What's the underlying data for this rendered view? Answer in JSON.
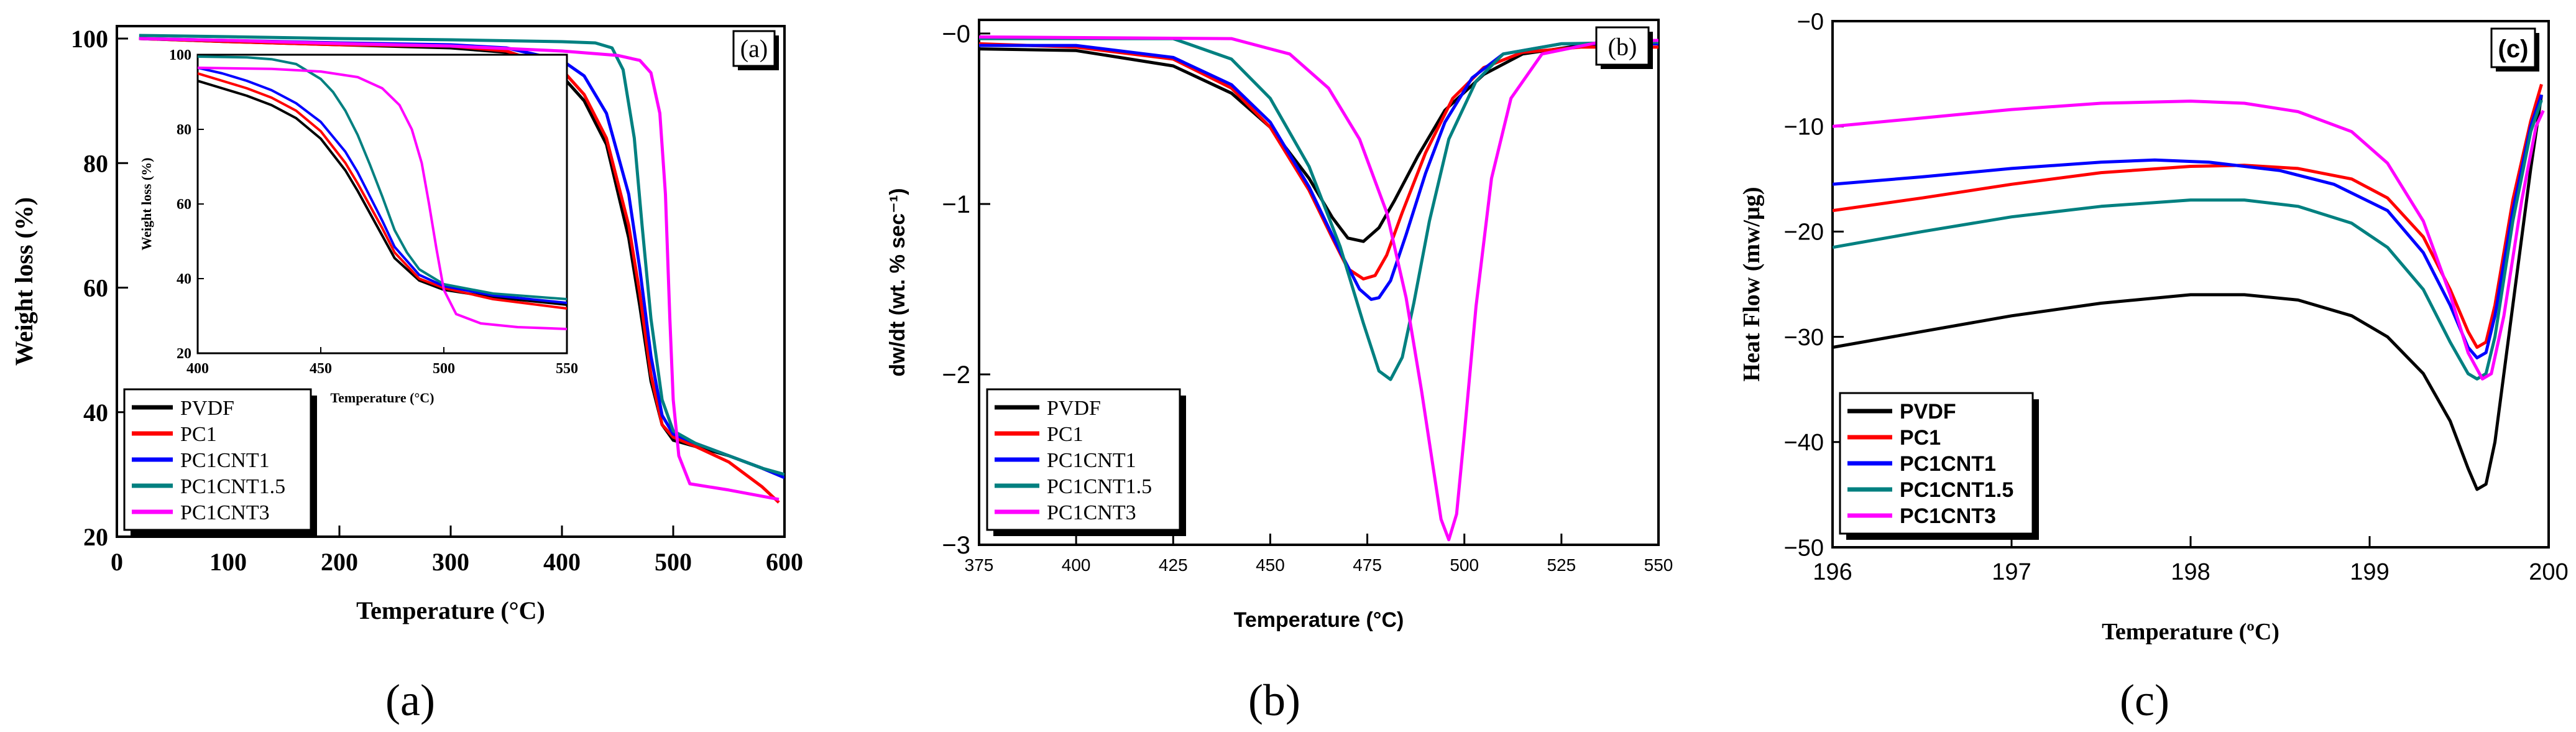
{
  "colors": {
    "PVDF": "#000000",
    "PC1": "#ff0000",
    "PC1CNT1": "#0000ff",
    "PC1CNT1.5": "#008080",
    "PC1CNT3": "#ff00ff"
  },
  "captions": [
    "(a)",
    "(b)",
    "(c)"
  ],
  "chart_data": [
    {
      "panel": "a",
      "type": "line",
      "panel_label": "(a)",
      "xlabel": "Temperature (°C)",
      "ylabel": "Weight loss (%)",
      "xlim": [
        0,
        600
      ],
      "ylim": [
        20,
        102
      ],
      "xticks": [
        0,
        100,
        200,
        300,
        400,
        500,
        600
      ],
      "yticks": [
        20,
        40,
        60,
        80,
        100
      ],
      "legend": [
        "PVDF",
        "PC1",
        "PC1CNT1",
        "PC1CNT1.5",
        "PC1CNT3"
      ],
      "series": [
        {
          "name": "PVDF",
          "x": [
            20,
            100,
            200,
            300,
            350,
            400,
            420,
            440,
            460,
            470,
            480,
            490,
            500,
            520,
            550,
            580,
            600
          ],
          "y": [
            100,
            99.5,
            99,
            98.5,
            97.8,
            94,
            90,
            83,
            68,
            57,
            45,
            38,
            35.5,
            34.5,
            33,
            31,
            29.5
          ]
        },
        {
          "name": "PC1",
          "x": [
            20,
            100,
            200,
            300,
            350,
            400,
            420,
            440,
            460,
            470,
            480,
            490,
            500,
            520,
            550,
            580,
            595
          ],
          "y": [
            100,
            99.5,
            99,
            98.8,
            98,
            95,
            91,
            84,
            70,
            59,
            46,
            38,
            36,
            34.5,
            32,
            28,
            25.5
          ]
        },
        {
          "name": "PC1CNT1",
          "x": [
            20,
            100,
            200,
            300,
            350,
            400,
            420,
            440,
            460,
            470,
            480,
            490,
            500,
            520,
            550,
            580,
            600
          ],
          "y": [
            100,
            99.7,
            99.3,
            99,
            98.5,
            96.5,
            94,
            88,
            75,
            63,
            49,
            39.5,
            36.5,
            35,
            33,
            31,
            29.5
          ]
        },
        {
          "name": "PC1CNT1.5",
          "x": [
            20,
            100,
            200,
            300,
            400,
            430,
            445,
            455,
            465,
            472,
            480,
            490,
            500,
            520,
            550,
            580,
            600
          ],
          "y": [
            100.5,
            100.3,
            100,
            99.8,
            99.5,
            99.3,
            98.5,
            95,
            84,
            70,
            55,
            42,
            37,
            35,
            33,
            31,
            30
          ]
        },
        {
          "name": "PC1CNT3",
          "x": [
            20,
            100,
            200,
            300,
            400,
            450,
            470,
            480,
            488,
            493,
            497,
            500,
            505,
            515,
            550,
            580,
            595
          ],
          "y": [
            100,
            99.7,
            99.2,
            98.8,
            98,
            97.3,
            96.5,
            94.5,
            88,
            75,
            55,
            42,
            33,
            28.5,
            27.5,
            26.5,
            26
          ]
        }
      ],
      "inset": {
        "xlabel": "Temperature (°C)",
        "ylabel": "Weight loss (%)",
        "xlim": [
          400,
          550
        ],
        "ylim": [
          20,
          100
        ],
        "xticks": [
          400,
          450,
          500,
          550
        ],
        "yticks": [
          20,
          40,
          60,
          80,
          100
        ],
        "series": [
          {
            "name": "PVDF",
            "x": [
              400,
              410,
              420,
              430,
              440,
              450,
              460,
              465,
              470,
              475,
              480,
              490,
              500,
              520,
              550
            ],
            "y": [
              93,
              91,
              89,
              86.5,
              83,
              77.5,
              69,
              63.5,
              57.5,
              51.5,
              45.5,
              39.5,
              37,
              35,
              33
            ]
          },
          {
            "name": "PC1",
            "x": [
              400,
              410,
              420,
              430,
              440,
              450,
              460,
              465,
              470,
              475,
              480,
              490,
              500,
              520,
              550
            ],
            "y": [
              95,
              93,
              91,
              88.5,
              85,
              79.5,
              71,
              65.5,
              59.5,
              53.5,
              47,
              40,
              37.5,
              34.5,
              32
            ]
          },
          {
            "name": "PC1CNT1",
            "x": [
              400,
              410,
              420,
              430,
              440,
              450,
              460,
              465,
              470,
              475,
              480,
              490,
              500,
              520,
              550
            ],
            "y": [
              96.5,
              95,
              93,
              90.5,
              87,
              82,
              74,
              68.5,
              62,
              55.5,
              48.5,
              41,
              38,
              35.5,
              33.5
            ]
          },
          {
            "name": "PC1CNT1.5",
            "x": [
              400,
              420,
              430,
              440,
              450,
              455,
              460,
              465,
              470,
              475,
              480,
              485,
              490,
              500,
              520,
              550
            ],
            "y": [
              99.5,
              99.3,
              98.8,
              97.5,
              93.5,
              90,
              85,
              78.5,
              70.5,
              62,
              53,
              47,
              42.5,
              38.5,
              36,
              34.5
            ]
          },
          {
            "name": "PC1CNT3",
            "x": [
              400,
              430,
              450,
              465,
              475,
              482,
              487,
              491,
              494,
              497,
              500,
              505,
              515,
              530,
              550
            ],
            "y": [
              96.5,
              96.2,
              95.5,
              94,
              91,
              86.5,
              80,
              71,
              60,
              48,
              37,
              30.5,
              28,
              27,
              26.5
            ]
          }
        ]
      }
    },
    {
      "panel": "b",
      "type": "line",
      "panel_label": "(b)",
      "xlabel": "Temperature (°C)",
      "ylabel": "dw/dt (wt. % sec⁻¹)",
      "xlim": [
        375,
        550
      ],
      "ylim": [
        -3,
        0.08
      ],
      "xticks": [
        375,
        400,
        425,
        450,
        475,
        500,
        525,
        550
      ],
      "yticks": [
        -3,
        -2,
        -1,
        0
      ],
      "ytick_labels": [
        "−3",
        "−2",
        "−1",
        "−0"
      ],
      "legend": [
        "PVDF",
        "PC1",
        "PC1CNT1",
        "PC1CNT1.5",
        "PC1CNT3"
      ],
      "series": [
        {
          "name": "PVDF",
          "x": [
            375,
            400,
            425,
            440,
            450,
            460,
            466,
            470,
            474,
            478,
            482,
            488,
            495,
            505,
            515,
            530,
            550
          ],
          "y": [
            -0.09,
            -0.1,
            -0.19,
            -0.35,
            -0.55,
            -0.85,
            -1.08,
            -1.2,
            -1.22,
            -1.14,
            -0.98,
            -0.72,
            -0.45,
            -0.24,
            -0.12,
            -0.07,
            -0.05
          ]
        },
        {
          "name": "PC1",
          "x": [
            375,
            400,
            425,
            440,
            450,
            460,
            466,
            470,
            474,
            477,
            480,
            484,
            490,
            497,
            505,
            515,
            530,
            550
          ],
          "y": [
            -0.06,
            -0.08,
            -0.15,
            -0.32,
            -0.55,
            -0.92,
            -1.2,
            -1.38,
            -1.44,
            -1.42,
            -1.3,
            -1.05,
            -0.7,
            -0.38,
            -0.2,
            -0.11,
            -0.08,
            -0.08
          ]
        },
        {
          "name": "PC1CNT1",
          "x": [
            375,
            400,
            425,
            440,
            450,
            460,
            468,
            473,
            476,
            478,
            481,
            485,
            490,
            495,
            502,
            510,
            525,
            550
          ],
          "y": [
            -0.07,
            -0.07,
            -0.14,
            -0.3,
            -0.52,
            -0.9,
            -1.28,
            -1.5,
            -1.56,
            -1.55,
            -1.45,
            -1.18,
            -0.82,
            -0.52,
            -0.26,
            -0.12,
            -0.06,
            -0.06
          ]
        },
        {
          "name": "PC1CNT1.5",
          "x": [
            375,
            425,
            440,
            450,
            460,
            468,
            474,
            478,
            481,
            484,
            487,
            491,
            496,
            503,
            510,
            525,
            550
          ],
          "y": [
            -0.03,
            -0.03,
            -0.15,
            -0.38,
            -0.78,
            -1.25,
            -1.7,
            -1.98,
            -2.03,
            -1.9,
            -1.58,
            -1.1,
            -0.62,
            -0.28,
            -0.12,
            -0.06,
            -0.05
          ]
        },
        {
          "name": "PC1CNT3",
          "x": [
            375,
            440,
            455,
            465,
            473,
            480,
            485,
            489,
            492,
            494,
            496,
            498,
            500,
            503,
            507,
            512,
            520,
            535,
            550
          ],
          "y": [
            -0.02,
            -0.03,
            -0.12,
            -0.32,
            -0.62,
            -1.05,
            -1.55,
            -2.1,
            -2.55,
            -2.85,
            -2.97,
            -2.82,
            -2.35,
            -1.6,
            -0.85,
            -0.38,
            -0.12,
            -0.05,
            -0.04
          ]
        }
      ]
    },
    {
      "panel": "c",
      "type": "line",
      "panel_label": "(c)",
      "xlabel": "Temperature (ºC)",
      "ylabel": "Heat Flow (mw/µg)",
      "xlim": [
        196,
        200
      ],
      "ylim": [
        -50,
        0
      ],
      "xticks": [
        196,
        197,
        198,
        199,
        200
      ],
      "yticks": [
        -50,
        -40,
        -30,
        -20,
        -10,
        0
      ],
      "ytick_labels": [
        "−50",
        "−40",
        "−30",
        "−20",
        "−10",
        "−0"
      ],
      "legend": [
        "PVDF",
        "PC1",
        "PC1CNT1",
        "PC1CNT1.5",
        "PC1CNT3"
      ],
      "series": [
        {
          "name": "PVDF",
          "x": [
            196,
            196.5,
            197,
            197.5,
            198,
            198.3,
            198.6,
            198.9,
            199.1,
            199.3,
            199.45,
            199.55,
            199.6,
            199.65,
            199.7,
            199.8,
            199.9,
            199.96
          ],
          "y": [
            -31,
            -29.5,
            -28,
            -26.8,
            -26,
            -26,
            -26.5,
            -28,
            -30,
            -33.5,
            -38,
            -42.5,
            -44.5,
            -44,
            -40,
            -27,
            -14,
            -7
          ]
        },
        {
          "name": "PC1",
          "x": [
            196,
            196.5,
            197,
            197.5,
            198,
            198.3,
            198.6,
            198.9,
            199.1,
            199.3,
            199.45,
            199.55,
            199.6,
            199.65,
            199.7,
            199.8,
            199.9,
            199.96
          ],
          "y": [
            -18,
            -16.8,
            -15.5,
            -14.4,
            -13.8,
            -13.7,
            -14,
            -15,
            -16.8,
            -20.5,
            -25.5,
            -29.5,
            -31,
            -30.5,
            -27,
            -17,
            -9.5,
            -6
          ]
        },
        {
          "name": "PC1CNT1",
          "x": [
            196,
            196.5,
            197,
            197.5,
            197.8,
            198.1,
            198.5,
            198.8,
            199.1,
            199.3,
            199.45,
            199.55,
            199.6,
            199.65,
            199.7,
            199.8,
            199.9,
            199.96
          ],
          "y": [
            -15.5,
            -14.8,
            -14,
            -13.4,
            -13.2,
            -13.4,
            -14.2,
            -15.5,
            -18,
            -22,
            -27,
            -31,
            -32,
            -31.5,
            -28,
            -18,
            -10,
            -7
          ]
        },
        {
          "name": "PC1CNT1.5",
          "x": [
            196,
            196.5,
            197,
            197.5,
            198,
            198.3,
            198.6,
            198.9,
            199.1,
            199.3,
            199.45,
            199.55,
            199.6,
            199.65,
            199.7,
            199.8,
            199.9,
            199.96
          ],
          "y": [
            -21.5,
            -20,
            -18.6,
            -17.6,
            -17,
            -17,
            -17.6,
            -19.2,
            -21.5,
            -25.5,
            -30.5,
            -33.5,
            -34,
            -33.5,
            -30,
            -19,
            -10.5,
            -7.5
          ]
        },
        {
          "name": "PC1CNT3",
          "x": [
            196,
            196.5,
            197,
            197.5,
            198,
            198.3,
            198.6,
            198.9,
            199.1,
            199.3,
            199.45,
            199.55,
            199.63,
            199.68,
            199.75,
            199.85,
            199.93,
            199.97
          ],
          "y": [
            -10,
            -9.2,
            -8.4,
            -7.8,
            -7.6,
            -7.8,
            -8.6,
            -10.5,
            -13.5,
            -19,
            -26,
            -31.5,
            -34,
            -33.5,
            -28,
            -17,
            -10,
            -8.5
          ]
        }
      ]
    }
  ]
}
